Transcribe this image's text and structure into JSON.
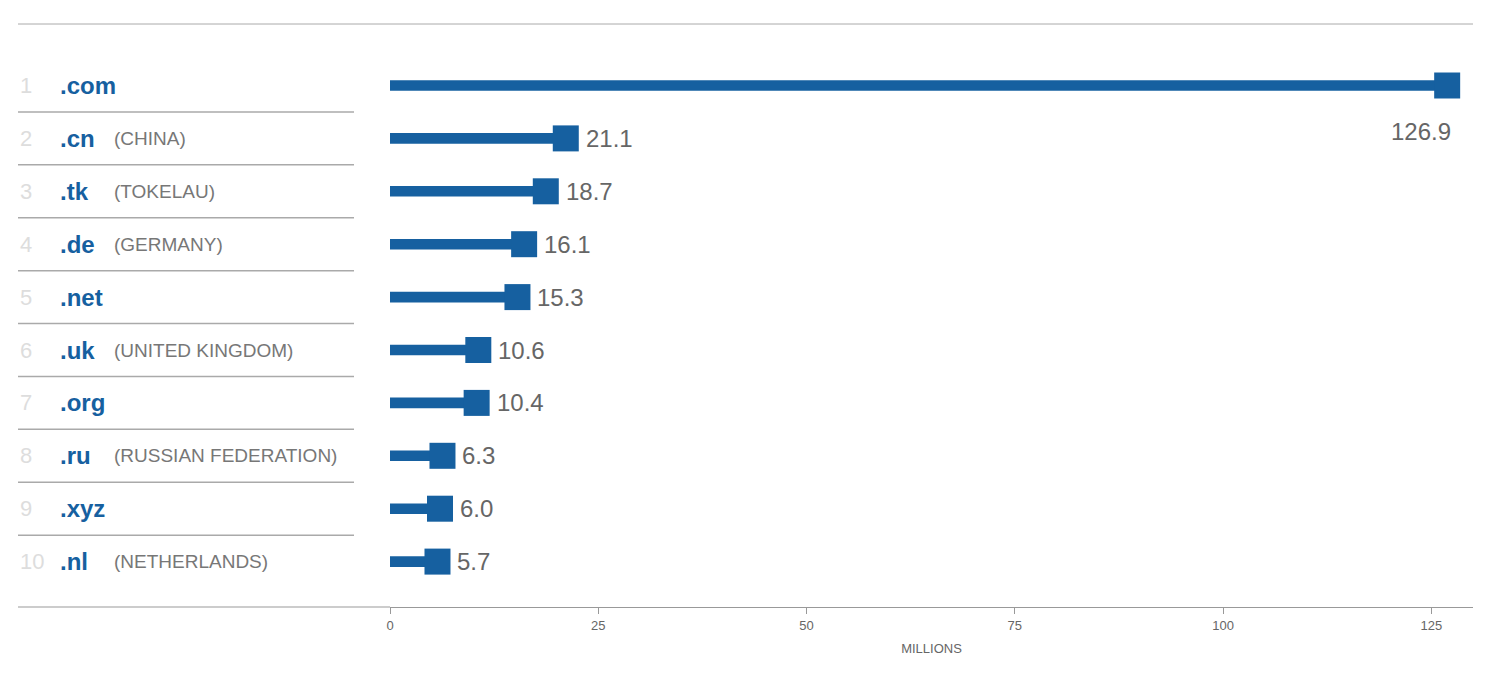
{
  "chart_data": {
    "type": "bar",
    "orientation": "horizontal",
    "categories": [
      ".com",
      ".cn",
      ".tk",
      ".de",
      ".net",
      ".uk",
      ".org",
      ".ru",
      ".xyz",
      ".nl"
    ],
    "ranks": [
      1,
      2,
      3,
      4,
      5,
      6,
      7,
      8,
      9,
      10
    ],
    "countries": [
      null,
      "(CHINA)",
      "(TOKELAU)",
      "(GERMANY)",
      null,
      "(UNITED KINGDOM)",
      null,
      "(RUSSIAN FEDERATION)",
      null,
      "(NETHERLANDS)"
    ],
    "values": [
      126.9,
      21.1,
      18.7,
      16.1,
      15.3,
      10.6,
      10.4,
      6.3,
      6.0,
      5.7
    ],
    "value_labels": [
      "126.9",
      "21.1",
      "18.7",
      "16.1",
      "15.3",
      "10.6",
      "10.4",
      "6.3",
      "6.0",
      "5.7"
    ],
    "color": "#1660a0",
    "xlabel": "MILLIONS",
    "xlim": [
      0,
      130
    ],
    "xticks": [
      0,
      25,
      50,
      75,
      100,
      125
    ],
    "grid": false,
    "data_labels": true,
    "tick_labels": "x"
  }
}
